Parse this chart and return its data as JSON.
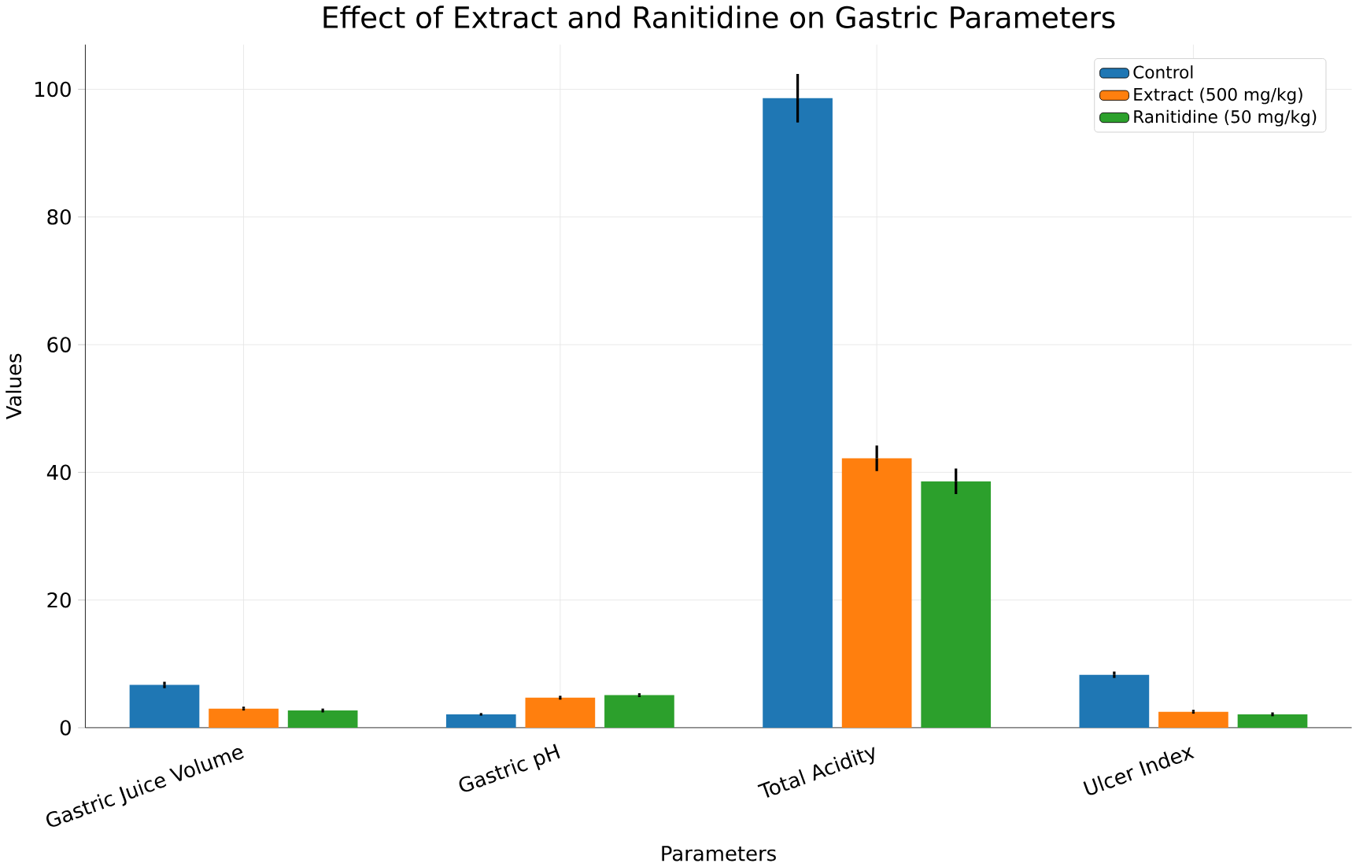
{
  "chart_data": {
    "type": "bar",
    "title": "Effect of Extract and Ranitidine on Gastric Parameters",
    "xlabel": "Parameters",
    "ylabel": "Values",
    "categories": [
      "Gastric Juice Volume",
      "Gastric pH",
      "Total Acidity",
      "Ulcer Index"
    ],
    "series": [
      {
        "name": "Control",
        "color": "#1f77b4",
        "values": [
          6.7,
          2.1,
          98.6,
          8.3
        ],
        "errors": [
          0.5,
          0.2,
          3.8,
          0.5
        ]
      },
      {
        "name": "Extract (500 mg/kg)",
        "color": "#ff7f0e",
        "values": [
          3.0,
          4.7,
          42.2,
          2.5
        ],
        "errors": [
          0.3,
          0.3,
          2.0,
          0.3
        ]
      },
      {
        "name": "Ranitidine (50 mg/kg)",
        "color": "#2ca02c",
        "values": [
          2.7,
          5.1,
          38.6,
          2.1
        ],
        "errors": [
          0.3,
          0.3,
          2.0,
          0.3
        ]
      }
    ],
    "ylim": [
      0,
      107
    ],
    "yticks": [
      0,
      20,
      40,
      60,
      80,
      100
    ],
    "grid": true,
    "legend": "top right"
  }
}
